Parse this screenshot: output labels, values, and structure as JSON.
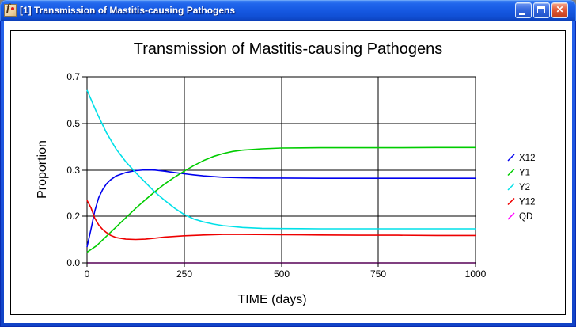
{
  "window": {
    "title": "[1] Transmission of Mastitis-causing Pathogens",
    "icon_glyph": "f",
    "controls": {
      "close_glyph": "✕"
    }
  },
  "chart_data": {
    "type": "line",
    "title": "Transmission of Mastitis-causing Pathogens",
    "xlabel": "TIME (days)",
    "ylabel": "Proportion",
    "xlim": [
      0,
      1000
    ],
    "ylim": [
      0,
      0.7
    ],
    "grid": true,
    "legend_position": "right",
    "x_ticks": [
      {
        "value": 0,
        "label": "0"
      },
      {
        "value": 250,
        "label": "250"
      },
      {
        "value": 500,
        "label": "500"
      },
      {
        "value": 750,
        "label": "750"
      },
      {
        "value": 1000,
        "label": "1000"
      }
    ],
    "y_ticks": [
      {
        "value": 0,
        "label": "0.0"
      },
      {
        "value": 0.175,
        "label": "0.2"
      },
      {
        "value": 0.35,
        "label": "0.3"
      },
      {
        "value": 0.525,
        "label": "0.5"
      },
      {
        "value": 0.7,
        "label": "0.7"
      }
    ],
    "series": [
      {
        "name": "X12",
        "color": "#0000EE",
        "points": [
          [
            0,
            0.06
          ],
          [
            10,
            0.125
          ],
          [
            20,
            0.195
          ],
          [
            30,
            0.245
          ],
          [
            40,
            0.275
          ],
          [
            50,
            0.297
          ],
          [
            60,
            0.312
          ],
          [
            75,
            0.327
          ],
          [
            100,
            0.34
          ],
          [
            125,
            0.347
          ],
          [
            150,
            0.35
          ],
          [
            175,
            0.349
          ],
          [
            200,
            0.345
          ],
          [
            225,
            0.34
          ],
          [
            250,
            0.335
          ],
          [
            275,
            0.331
          ],
          [
            300,
            0.327
          ],
          [
            350,
            0.322
          ],
          [
            400,
            0.32
          ],
          [
            450,
            0.319
          ],
          [
            500,
            0.319
          ],
          [
            600,
            0.318
          ],
          [
            700,
            0.318
          ],
          [
            800,
            0.318
          ],
          [
            900,
            0.318
          ],
          [
            1000,
            0.318
          ]
        ]
      },
      {
        "name": "Y1",
        "color": "#00CC00",
        "points": [
          [
            0,
            0.04
          ],
          [
            25,
            0.065
          ],
          [
            50,
            0.1
          ],
          [
            75,
            0.135
          ],
          [
            100,
            0.17
          ],
          [
            125,
            0.205
          ],
          [
            150,
            0.237
          ],
          [
            175,
            0.268
          ],
          [
            200,
            0.297
          ],
          [
            225,
            0.322
          ],
          [
            250,
            0.345
          ],
          [
            275,
            0.366
          ],
          [
            300,
            0.385
          ],
          [
            325,
            0.4
          ],
          [
            350,
            0.411
          ],
          [
            375,
            0.419
          ],
          [
            400,
            0.424
          ],
          [
            450,
            0.429
          ],
          [
            500,
            0.432
          ],
          [
            600,
            0.433
          ],
          [
            700,
            0.433
          ],
          [
            800,
            0.433
          ],
          [
            900,
            0.434
          ],
          [
            1000,
            0.434
          ]
        ]
      },
      {
        "name": "Y2",
        "color": "#00E0E8",
        "points": [
          [
            0,
            0.65
          ],
          [
            25,
            0.565
          ],
          [
            50,
            0.49
          ],
          [
            75,
            0.428
          ],
          [
            100,
            0.38
          ],
          [
            125,
            0.34
          ],
          [
            150,
            0.303
          ],
          [
            175,
            0.266
          ],
          [
            200,
            0.235
          ],
          [
            225,
            0.206
          ],
          [
            250,
            0.182
          ],
          [
            275,
            0.165
          ],
          [
            300,
            0.154
          ],
          [
            325,
            0.146
          ],
          [
            350,
            0.14
          ],
          [
            400,
            0.133
          ],
          [
            450,
            0.13
          ],
          [
            500,
            0.129
          ],
          [
            600,
            0.128
          ],
          [
            700,
            0.128
          ],
          [
            800,
            0.128
          ],
          [
            900,
            0.128
          ],
          [
            1000,
            0.128
          ]
        ]
      },
      {
        "name": "Y12",
        "color": "#EE0000",
        "points": [
          [
            0,
            0.235
          ],
          [
            10,
            0.208
          ],
          [
            20,
            0.168
          ],
          [
            30,
            0.143
          ],
          [
            40,
            0.126
          ],
          [
            50,
            0.114
          ],
          [
            60,
            0.104
          ],
          [
            75,
            0.095
          ],
          [
            100,
            0.089
          ],
          [
            125,
            0.088
          ],
          [
            150,
            0.089
          ],
          [
            175,
            0.093
          ],
          [
            200,
            0.097
          ],
          [
            250,
            0.102
          ],
          [
            300,
            0.105
          ],
          [
            350,
            0.107
          ],
          [
            400,
            0.107
          ],
          [
            500,
            0.106
          ],
          [
            600,
            0.105
          ],
          [
            700,
            0.104
          ],
          [
            800,
            0.104
          ],
          [
            900,
            0.103
          ],
          [
            1000,
            0.103
          ]
        ]
      },
      {
        "name": "QD",
        "color": "#FF00FF",
        "points": [
          [
            0,
            0
          ],
          [
            250,
            0
          ],
          [
            500,
            0
          ],
          [
            750,
            0
          ],
          [
            1000,
            0
          ]
        ]
      }
    ]
  }
}
